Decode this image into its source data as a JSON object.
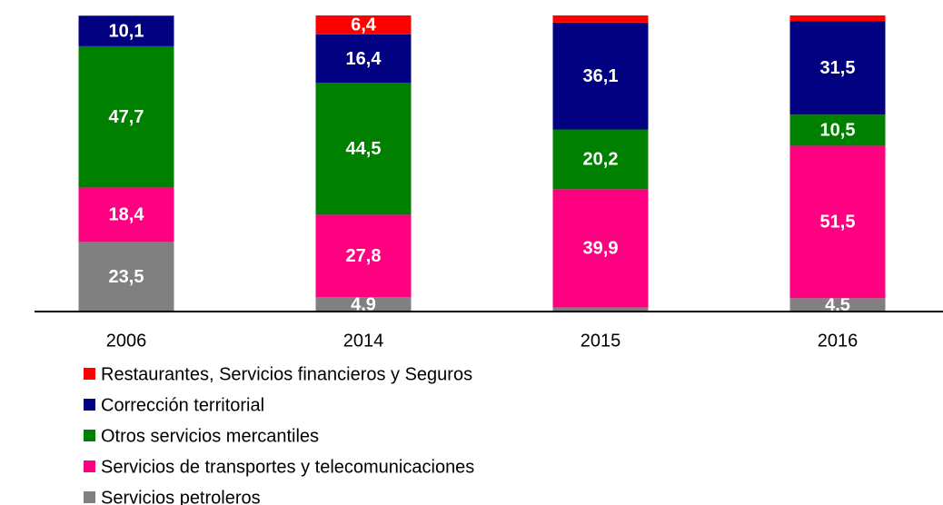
{
  "chart_data": {
    "type": "stacked_bar",
    "categories": [
      "2006",
      "2014",
      "2015",
      "2016"
    ],
    "series": [
      {
        "name": "Restaurantes, Servicios financieros y Seguros",
        "color": "#ff0000",
        "values": [
          0.3,
          6.4,
          2.4,
          2.0
        ],
        "value_labels": [
          null,
          "6,4",
          null,
          null
        ]
      },
      {
        "name": "Corrección territorial",
        "color": "#000080",
        "values": [
          10.1,
          16.4,
          36.1,
          31.5
        ],
        "value_labels": [
          "10,1",
          "16,4",
          "36,1",
          "31,5"
        ]
      },
      {
        "name": "Otros servicios mercantiles",
        "color": "#008000",
        "values": [
          47.7,
          44.5,
          20.2,
          10.5
        ],
        "value_labels": [
          "47,7",
          "44,5",
          "20,2",
          "10,5"
        ]
      },
      {
        "name": "Servicios de transportes y telecomunicaciones",
        "color": "#ff0080",
        "values": [
          18.4,
          27.8,
          39.9,
          51.5
        ],
        "value_labels": [
          "18,4",
          "27,8",
          "39,9",
          "51,5"
        ]
      },
      {
        "name": "Servicios petroleros",
        "color": "#808080",
        "values": [
          23.5,
          4.9,
          1.4,
          4.5
        ],
        "value_labels": [
          "23,5",
          "4,9",
          null,
          "4,5"
        ]
      }
    ]
  }
}
